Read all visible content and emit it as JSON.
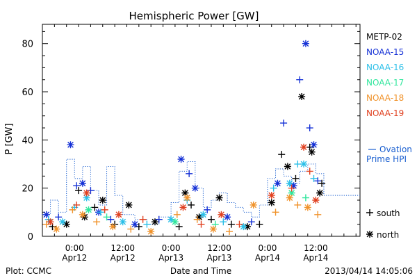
{
  "chart_data": {
    "type": "scatter",
    "title": "Hemispheric Power [GW]",
    "ylabel": "P [GW]",
    "xlabel": "Date and Time",
    "ylim": [
      0,
      88
    ],
    "yticks": [
      0,
      20,
      40,
      60,
      80
    ],
    "xrange": [
      "2013-04-11 16:00",
      "2013-04-14 23:00"
    ],
    "xticks": [
      {
        "time": "2013-04-12 00:00",
        "label1": "0:00",
        "label2": "Apr12"
      },
      {
        "time": "2013-04-12 12:00",
        "label1": "12:00",
        "label2": "Apr12"
      },
      {
        "time": "2013-04-13 00:00",
        "label1": "0:00",
        "label2": "Apr13"
      },
      {
        "time": "2013-04-13 12:00",
        "label1": "12:00",
        "label2": "Apr13"
      },
      {
        "time": "2013-04-14 00:00",
        "label1": "0:00",
        "label2": "Apr14"
      },
      {
        "time": "2013-04-14 12:00",
        "label1": "12:00",
        "label2": "Apr14"
      }
    ],
    "legend_position": "right",
    "series": [
      {
        "name": "METP-02",
        "color": "#000000",
        "points": [
          [
            "2013-04-11 18:30",
            4
          ],
          [
            "2013-04-11 22:00",
            5
          ],
          [
            "2013-04-12 01:00",
            19
          ],
          [
            "2013-04-12 02:30",
            8
          ],
          [
            "2013-04-12 05:00",
            12
          ],
          [
            "2013-04-12 07:00",
            15
          ],
          [
            "2013-04-12 10:00",
            5
          ],
          [
            "2013-04-12 13:30",
            13
          ],
          [
            "2013-04-12 16:00",
            4
          ],
          [
            "2013-04-12 20:00",
            6
          ],
          [
            "2013-04-13 02:00",
            4
          ],
          [
            "2013-04-13 03:30",
            18
          ],
          [
            "2013-04-13 05:00",
            13
          ],
          [
            "2013-04-13 07:00",
            8
          ],
          [
            "2013-04-13 10:00",
            7
          ],
          [
            "2013-04-13 12:00",
            16
          ],
          [
            "2013-04-13 15:00",
            5
          ],
          [
            "2013-04-13 19:00",
            4
          ],
          [
            "2013-04-13 22:00",
            5
          ],
          [
            "2013-04-14 01:00",
            14
          ],
          [
            "2013-04-14 03:30",
            34
          ],
          [
            "2013-04-14 05:00",
            29
          ],
          [
            "2013-04-14 07:00",
            24
          ],
          [
            "2013-04-14 08:30",
            58
          ],
          [
            "2013-04-14 10:30",
            37
          ],
          [
            "2013-04-14 11:00",
            35
          ],
          [
            "2013-04-14 13:30",
            22
          ],
          [
            "2013-04-14 13:00",
            18
          ]
        ]
      },
      {
        "name": "NOAA-15",
        "color": "#1531d6",
        "points": [
          [
            "2013-04-11 17:00",
            9
          ],
          [
            "2013-04-11 20:00",
            8
          ],
          [
            "2013-04-11 23:00",
            38
          ],
          [
            "2013-04-12 00:30",
            21
          ],
          [
            "2013-04-12 02:00",
            22
          ],
          [
            "2013-04-12 04:00",
            19
          ],
          [
            "2013-04-12 06:00",
            10
          ],
          [
            "2013-04-12 09:00",
            7
          ],
          [
            "2013-04-12 15:00",
            5
          ],
          [
            "2013-04-12 21:00",
            7
          ],
          [
            "2013-04-13 02:30",
            32
          ],
          [
            "2013-04-13 04:30",
            26
          ],
          [
            "2013-04-13 06:00",
            20
          ],
          [
            "2013-04-13 09:00",
            11
          ],
          [
            "2013-04-13 14:00",
            8
          ],
          [
            "2013-04-13 20:00",
            6
          ],
          [
            "2013-04-14 02:30",
            22
          ],
          [
            "2013-04-14 04:00",
            47
          ],
          [
            "2013-04-14 06:30",
            21
          ],
          [
            "2013-04-14 08:00",
            65
          ],
          [
            "2013-04-14 09:30",
            80
          ],
          [
            "2013-04-14 10:30",
            45
          ],
          [
            "2013-04-14 11:30",
            38
          ],
          [
            "2013-04-14 12:30",
            23
          ]
        ]
      },
      {
        "name": "NOAA-16",
        "color": "#2bbfe8",
        "points": [
          [
            "2013-04-11 17:30",
            7
          ],
          [
            "2013-04-11 21:00",
            6
          ],
          [
            "2013-04-12 00:00",
            12
          ],
          [
            "2013-04-12 03:00",
            16
          ],
          [
            "2013-04-12 06:30",
            10
          ],
          [
            "2013-04-12 12:00",
            6
          ],
          [
            "2013-04-12 18:00",
            5
          ],
          [
            "2013-04-13 00:00",
            7
          ],
          [
            "2013-04-13 04:00",
            15
          ],
          [
            "2013-04-13 08:00",
            9
          ],
          [
            "2013-04-13 13:00",
            6
          ],
          [
            "2013-04-13 18:00",
            4
          ],
          [
            "2013-04-14 01:30",
            20
          ],
          [
            "2013-04-14 05:30",
            22
          ],
          [
            "2013-04-14 07:30",
            30
          ],
          [
            "2013-04-14 09:00",
            30
          ],
          [
            "2013-04-14 11:30",
            24
          ]
        ]
      },
      {
        "name": "NOAA-17",
        "color": "#2fe69c",
        "points": [
          [
            "2013-04-12 03:30",
            11
          ],
          [
            "2013-04-12 08:00",
            8
          ],
          [
            "2013-04-13 01:00",
            6
          ],
          [
            "2013-04-13 11:00",
            5
          ],
          [
            "2013-04-14 06:00",
            18
          ],
          [
            "2013-04-14 09:30",
            16
          ]
        ]
      },
      {
        "name": "NOAA-18",
        "color": "#f0922a",
        "points": [
          [
            "2013-04-11 17:00",
            5
          ],
          [
            "2013-04-11 19:30",
            3
          ],
          [
            "2013-04-11 23:30",
            11
          ],
          [
            "2013-04-12 02:00",
            9
          ],
          [
            "2013-04-12 05:30",
            6
          ],
          [
            "2013-04-12 09:30",
            4
          ],
          [
            "2013-04-12 14:00",
            3
          ],
          [
            "2013-04-12 19:00",
            2
          ],
          [
            "2013-04-13 01:30",
            9
          ],
          [
            "2013-04-13 04:00",
            16
          ],
          [
            "2013-04-13 06:30",
            7
          ],
          [
            "2013-04-13 10:30",
            3
          ],
          [
            "2013-04-13 14:30",
            2
          ],
          [
            "2013-04-13 20:30",
            13
          ],
          [
            "2013-04-14 02:00",
            10
          ],
          [
            "2013-04-14 05:30",
            16
          ],
          [
            "2013-04-14 07:30",
            13
          ],
          [
            "2013-04-14 10:00",
            12
          ],
          [
            "2013-04-14 12:30",
            9
          ]
        ]
      },
      {
        "name": "NOAA-19",
        "color": "#e0401f",
        "points": [
          [
            "2013-04-11 18:00",
            6
          ],
          [
            "2013-04-12 00:30",
            13
          ],
          [
            "2013-04-12 03:00",
            18
          ],
          [
            "2013-04-12 07:30",
            11
          ],
          [
            "2013-04-12 11:00",
            9
          ],
          [
            "2013-04-12 17:00",
            7
          ],
          [
            "2013-04-13 03:00",
            12
          ],
          [
            "2013-04-13 07:30",
            5
          ],
          [
            "2013-04-13 12:30",
            9
          ],
          [
            "2013-04-13 17:00",
            5
          ],
          [
            "2013-04-14 01:00",
            17
          ],
          [
            "2013-04-14 06:00",
            20
          ],
          [
            "2013-04-14 09:00",
            37
          ],
          [
            "2013-04-14 10:30",
            27
          ],
          [
            "2013-04-14 12:00",
            15
          ]
        ]
      }
    ],
    "ovation": {
      "name": "Ovation Prime HPI",
      "label_line1": "Ovation",
      "label_line2": "Prime HPI",
      "color": "#1a5fd0",
      "points": [
        [
          "2013-04-11 16:00",
          9
        ],
        [
          "2013-04-11 18:00",
          15
        ],
        [
          "2013-04-11 20:00",
          10
        ],
        [
          "2013-04-11 22:00",
          32
        ],
        [
          "2013-04-12 00:00",
          24
        ],
        [
          "2013-04-12 02:00",
          29
        ],
        [
          "2013-04-12 04:00",
          19
        ],
        [
          "2013-04-12 06:00",
          13
        ],
        [
          "2013-04-12 08:00",
          29
        ],
        [
          "2013-04-12 10:00",
          17
        ],
        [
          "2013-04-12 12:00",
          9
        ],
        [
          "2013-04-12 15:00",
          7
        ],
        [
          "2013-04-12 18:00",
          5
        ],
        [
          "2013-04-12 21:00",
          8
        ],
        [
          "2013-04-13 00:00",
          14
        ],
        [
          "2013-04-13 02:00",
          27
        ],
        [
          "2013-04-13 04:00",
          31
        ],
        [
          "2013-04-13 06:00",
          20
        ],
        [
          "2013-04-13 08:00",
          12
        ],
        [
          "2013-04-13 10:00",
          15
        ],
        [
          "2013-04-13 12:00",
          18
        ],
        [
          "2013-04-13 14:00",
          14
        ],
        [
          "2013-04-13 16:00",
          12
        ],
        [
          "2013-04-13 18:00",
          10
        ],
        [
          "2013-04-13 20:00",
          8
        ],
        [
          "2013-04-13 22:00",
          13
        ],
        [
          "2013-04-14 00:00",
          24
        ],
        [
          "2013-04-14 02:00",
          28
        ],
        [
          "2013-04-14 04:00",
          25
        ],
        [
          "2013-04-14 06:00",
          22
        ],
        [
          "2013-04-14 08:00",
          27
        ],
        [
          "2013-04-14 10:00",
          30
        ],
        [
          "2013-04-14 12:00",
          26
        ],
        [
          "2013-04-14 14:00",
          17
        ]
      ]
    },
    "markers": {
      "south": "+",
      "north": "*"
    }
  },
  "legend": {
    "south_label": "south",
    "north_label": "north"
  },
  "footer": {
    "left": "Plot: CCMC",
    "center": "Date and Time",
    "right": "2013/04/14 14:05:06"
  }
}
